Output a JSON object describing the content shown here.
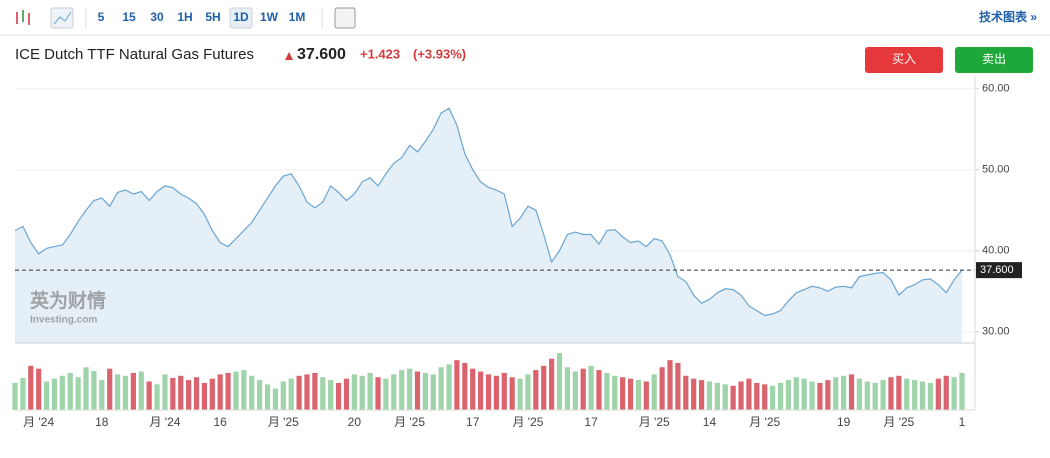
{
  "toolbar": {
    "intervals": [
      "5",
      "15",
      "30",
      "1H",
      "5H",
      "1D",
      "1W",
      "1M"
    ],
    "active": "1D",
    "link": "技术图表 »"
  },
  "header": {
    "title": "ICE Dutch TTF Natural Gas Futures",
    "price": "37.600",
    "change": "+1.423",
    "change_pct": "(+3.93%)",
    "buy": "买入",
    "sell": "卖出"
  },
  "watermark": {
    "brand": "英为财情",
    "site": "Investing.com"
  },
  "chart_data": {
    "type": "line",
    "categories": [
      null,
      null,
      null,
      "月 '24",
      null,
      null,
      null,
      null,
      null,
      null,
      null,
      "18",
      null,
      null,
      null,
      null,
      null,
      null,
      null,
      "月 '24",
      null,
      null,
      null,
      null,
      null,
      null,
      "16",
      null,
      null,
      null,
      null,
      null,
      null,
      null,
      "月 '25",
      null,
      null,
      null,
      null,
      null,
      null,
      null,
      null,
      "20",
      null,
      null,
      null,
      null,
      null,
      null,
      "月 '25",
      null,
      null,
      null,
      null,
      null,
      null,
      null,
      "17",
      null,
      null,
      null,
      null,
      null,
      null,
      "月 '25",
      null,
      null,
      null,
      null,
      null,
      null,
      null,
      "17",
      null,
      null,
      null,
      null,
      null,
      null,
      null,
      "月 '25",
      null,
      null,
      null,
      null,
      null,
      null,
      "14",
      null,
      null,
      null,
      null,
      null,
      null,
      "月 '25",
      null,
      null,
      null,
      null,
      null,
      null,
      null,
      null,
      null,
      "19",
      null,
      null,
      null,
      null,
      null,
      null,
      "月 '25",
      null,
      null,
      null,
      null,
      null,
      null,
      null,
      "1"
    ],
    "values": [
      42.5,
      43,
      41,
      39.6,
      40.3,
      40.5,
      40.7,
      42,
      43.6,
      45,
      46.2,
      46.5,
      45.5,
      47.2,
      47.5,
      47,
      47.3,
      46.2,
      47.3,
      48,
      47.8,
      47,
      46.5,
      45.8,
      44.5,
      42.5,
      41,
      40.5,
      41.5,
      42.5,
      43.5,
      45,
      46.5,
      48,
      49.2,
      49.5,
      48,
      46,
      45.3,
      46,
      48,
      47.2,
      46.2,
      47,
      48.5,
      49,
      48,
      49.5,
      50.8,
      51.5,
      53,
      52.2,
      53.5,
      55,
      57,
      57.6,
      55.5,
      52,
      50,
      48.5,
      47.8,
      47.5,
      47,
      43,
      44,
      45.5,
      45,
      42,
      38.6,
      40,
      42,
      42.3,
      42,
      42,
      40.8,
      42.5,
      42.6,
      41.7,
      41,
      41.2,
      40.5,
      41.5,
      41.2,
      39.5,
      36.8,
      36.2,
      34.5,
      33.5,
      34,
      34.8,
      35.3,
      35.2,
      34.5,
      33.2,
      32.6,
      32,
      32.2,
      32.6,
      33.8,
      34.8,
      35.2,
      35.6,
      35.4,
      35,
      35.5,
      35.6,
      35.4,
      36.8,
      37,
      37.2,
      37.3,
      36.4,
      34.5,
      35.4,
      35.8,
      36.4,
      36.5,
      35.8,
      34.8,
      36.4,
      37.6
    ],
    "volume": [
      38,
      45,
      62,
      58,
      40,
      44,
      48,
      52,
      46,
      60,
      55,
      42,
      58,
      50,
      48,
      52,
      54,
      40,
      36,
      50,
      45,
      48,
      42,
      46,
      38,
      44,
      50,
      52,
      54,
      56,
      48,
      42,
      36,
      30,
      40,
      44,
      48,
      50,
      52,
      46,
      42,
      38,
      44,
      50,
      48,
      52,
      46,
      44,
      50,
      56,
      58,
      54,
      52,
      50,
      60,
      64,
      70,
      66,
      58,
      54,
      50,
      48,
      52,
      46,
      44,
      50,
      56,
      62,
      72,
      80,
      60,
      54,
      58,
      62,
      56,
      52,
      48,
      46,
      44,
      42,
      40,
      50,
      60,
      70,
      66,
      48,
      44,
      42,
      40,
      38,
      36,
      34,
      40,
      44,
      38,
      36,
      34,
      38,
      42,
      46,
      44,
      40,
      38,
      42,
      46,
      48,
      50,
      44,
      40,
      38,
      42,
      46,
      48,
      44,
      42,
      40,
      38,
      44,
      48,
      46,
      52
    ],
    "color": "#6aa5d4",
    "area_color": "#e4eff7",
    "up_color": "#9fd3a9",
    "down_color": "#d9646d",
    "ylim": [
      28.6,
      61.7
    ],
    "yticks": [
      {
        "value": 30,
        "label": "30.00"
      },
      {
        "value": 40,
        "label": "40.00"
      },
      {
        "value": 50,
        "label": "50.00"
      },
      {
        "value": 60,
        "label": "60.00"
      }
    ],
    "grid": true
  }
}
